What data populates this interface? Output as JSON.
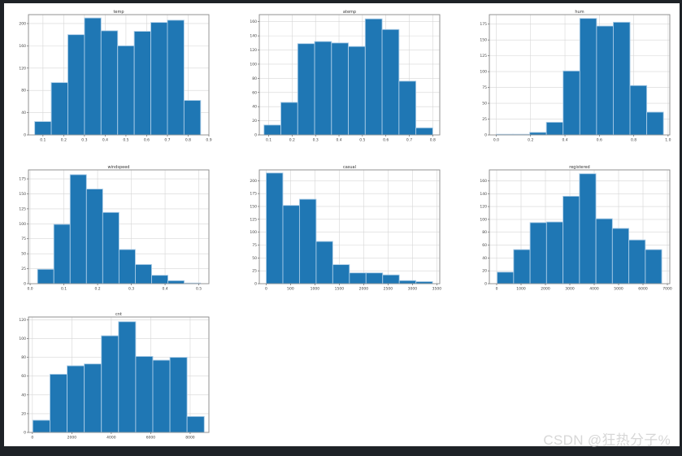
{
  "watermark": "CSDN @狂热分子%",
  "chart_data": [
    {
      "type": "bar",
      "title": "temp",
      "bin_edges": [
        0.06,
        0.14,
        0.22,
        0.3,
        0.38,
        0.46,
        0.54,
        0.62,
        0.7,
        0.78,
        0.86
      ],
      "values": [
        24,
        94,
        180,
        210,
        187,
        160,
        186,
        202,
        206,
        62
      ],
      "xlim": [
        0.03,
        0.9
      ],
      "xticks": [
        0.1,
        0.2,
        0.3,
        0.4,
        0.5,
        0.6,
        0.7,
        0.8,
        0.9
      ],
      "xtick_labels": [
        "0.1",
        "0.2",
        "0.3",
        "0.4",
        "0.5",
        "0.6",
        "0.7",
        "0.8",
        "0.9"
      ],
      "ylim": [
        0,
        216
      ],
      "yticks": [
        0,
        40,
        80,
        120,
        160,
        200
      ],
      "ytick_labels": [
        "0",
        "40",
        "80",
        "120",
        "160",
        "200"
      ],
      "grid": true
    },
    {
      "type": "bar",
      "title": "atemp",
      "bin_edges": [
        0.08,
        0.152,
        0.224,
        0.296,
        0.368,
        0.44,
        0.512,
        0.584,
        0.656,
        0.728,
        0.8
      ],
      "values": [
        14,
        46,
        129,
        132,
        130,
        125,
        164,
        149,
        76,
        10
      ],
      "xlim": [
        0.06,
        0.83
      ],
      "xticks": [
        0.1,
        0.2,
        0.3,
        0.4,
        0.5,
        0.6,
        0.7,
        0.8
      ],
      "xtick_labels": [
        "0.1",
        "0.2",
        "0.3",
        "0.4",
        "0.5",
        "0.6",
        "0.7",
        "0.8"
      ],
      "ylim": [
        0,
        170
      ],
      "yticks": [
        0,
        20,
        40,
        60,
        80,
        100,
        120,
        140,
        160
      ],
      "ytick_labels": [
        "0",
        "20",
        "40",
        "60",
        "80",
        "100",
        "120",
        "140",
        "160"
      ],
      "grid": true
    },
    {
      "type": "bar",
      "title": "hum",
      "bin_edges": [
        0.0,
        0.0973,
        0.1946,
        0.2919,
        0.3892,
        0.4865,
        0.5838,
        0.6811,
        0.7784,
        0.8757,
        0.973
      ],
      "values": [
        1,
        1,
        4,
        20,
        101,
        184,
        172,
        178,
        78,
        36
      ],
      "xlim": [
        -0.04,
        1.01
      ],
      "xticks": [
        0.0,
        0.2,
        0.4,
        0.6,
        0.8,
        1.0
      ],
      "xtick_labels": [
        "0.0",
        "0.2",
        "0.4",
        "0.6",
        "0.8",
        "1.0"
      ],
      "ylim": [
        0,
        190
      ],
      "yticks": [
        0,
        25,
        50,
        75,
        100,
        125,
        150,
        175
      ],
      "ytick_labels": [
        "0",
        "25",
        "50",
        "75",
        "100",
        "125",
        "150",
        "175"
      ],
      "grid": true
    },
    {
      "type": "bar",
      "title": "windspeed",
      "bin_edges": [
        0.022,
        0.0703,
        0.1186,
        0.1669,
        0.2152,
        0.2635,
        0.3118,
        0.3601,
        0.4084,
        0.4567,
        0.505
      ],
      "values": [
        24,
        99,
        182,
        158,
        119,
        57,
        32,
        14,
        5,
        1
      ],
      "xlim": [
        -0.005,
        0.53
      ],
      "xticks": [
        0.0,
        0.1,
        0.2,
        0.3,
        0.4,
        0.5
      ],
      "xtick_labels": [
        "0.0",
        "0.1",
        "0.2",
        "0.3",
        "0.4",
        "0.5"
      ],
      "ylim": [
        0,
        190
      ],
      "yticks": [
        0,
        25,
        50,
        75,
        100,
        125,
        150,
        175
      ],
      "ytick_labels": [
        "0",
        "25",
        "50",
        "75",
        "100",
        "125",
        "150",
        "175"
      ],
      "grid": true
    },
    {
      "type": "bar",
      "title": "casual",
      "bin_edges": [
        2,
        343,
        684,
        1025,
        1366,
        1707,
        2048,
        2389,
        2730,
        3071,
        3412
      ],
      "values": [
        215,
        152,
        164,
        82,
        37,
        21,
        21,
        17,
        6,
        4
      ],
      "xlim": [
        -140,
        3560
      ],
      "xticks": [
        0,
        500,
        1000,
        1500,
        2000,
        2500,
        3000,
        3500
      ],
      "xtick_labels": [
        "0",
        "500",
        "1000",
        "1500",
        "2000",
        "2500",
        "3000",
        "3500"
      ],
      "ylim": [
        0,
        221
      ],
      "yticks": [
        0,
        25,
        50,
        75,
        100,
        125,
        150,
        175,
        200
      ],
      "ytick_labels": [
        "0",
        "25",
        "50",
        "75",
        "100",
        "125",
        "150",
        "175",
        "200"
      ],
      "grid": true
    },
    {
      "type": "bar",
      "title": "registered",
      "bin_edges": [
        20,
        695,
        1370,
        2045,
        2720,
        3395,
        4070,
        4745,
        5420,
        6095,
        6770
      ],
      "values": [
        18,
        53,
        95,
        96,
        136,
        171,
        101,
        86,
        68,
        53
      ],
      "xlim": [
        -300,
        7100
      ],
      "xticks": [
        0,
        1000,
        2000,
        3000,
        4000,
        5000,
        6000,
        7000
      ],
      "xtick_labels": [
        "0",
        "1000",
        "2000",
        "3000",
        "4000",
        "5000",
        "6000",
        "7000"
      ],
      "ylim": [
        0,
        177
      ],
      "yticks": [
        0,
        20,
        40,
        60,
        80,
        100,
        120,
        140,
        160
      ],
      "ytick_labels": [
        "0",
        "20",
        "40",
        "60",
        "80",
        "100",
        "120",
        "140",
        "160"
      ],
      "grid": true
    },
    {
      "type": "bar",
      "title": "cnt",
      "bin_edges": [
        22,
        891,
        1760,
        2629,
        3498,
        4367,
        5236,
        6105,
        6974,
        7843,
        8714
      ],
      "values": [
        13,
        62,
        71,
        73,
        103,
        118,
        81,
        77,
        80,
        17
      ],
      "xlim": [
        -200,
        8950
      ],
      "xticks": [
        0,
        2000,
        4000,
        6000,
        8000
      ],
      "xtick_labels": [
        "0",
        "2000",
        "4000",
        "6000",
        "8000"
      ],
      "ylim": [
        0,
        123
      ],
      "yticks": [
        0,
        20,
        40,
        60,
        80,
        100,
        120
      ],
      "ytick_labels": [
        "0",
        "20",
        "40",
        "60",
        "80",
        "100",
        "120"
      ],
      "grid": true
    }
  ]
}
